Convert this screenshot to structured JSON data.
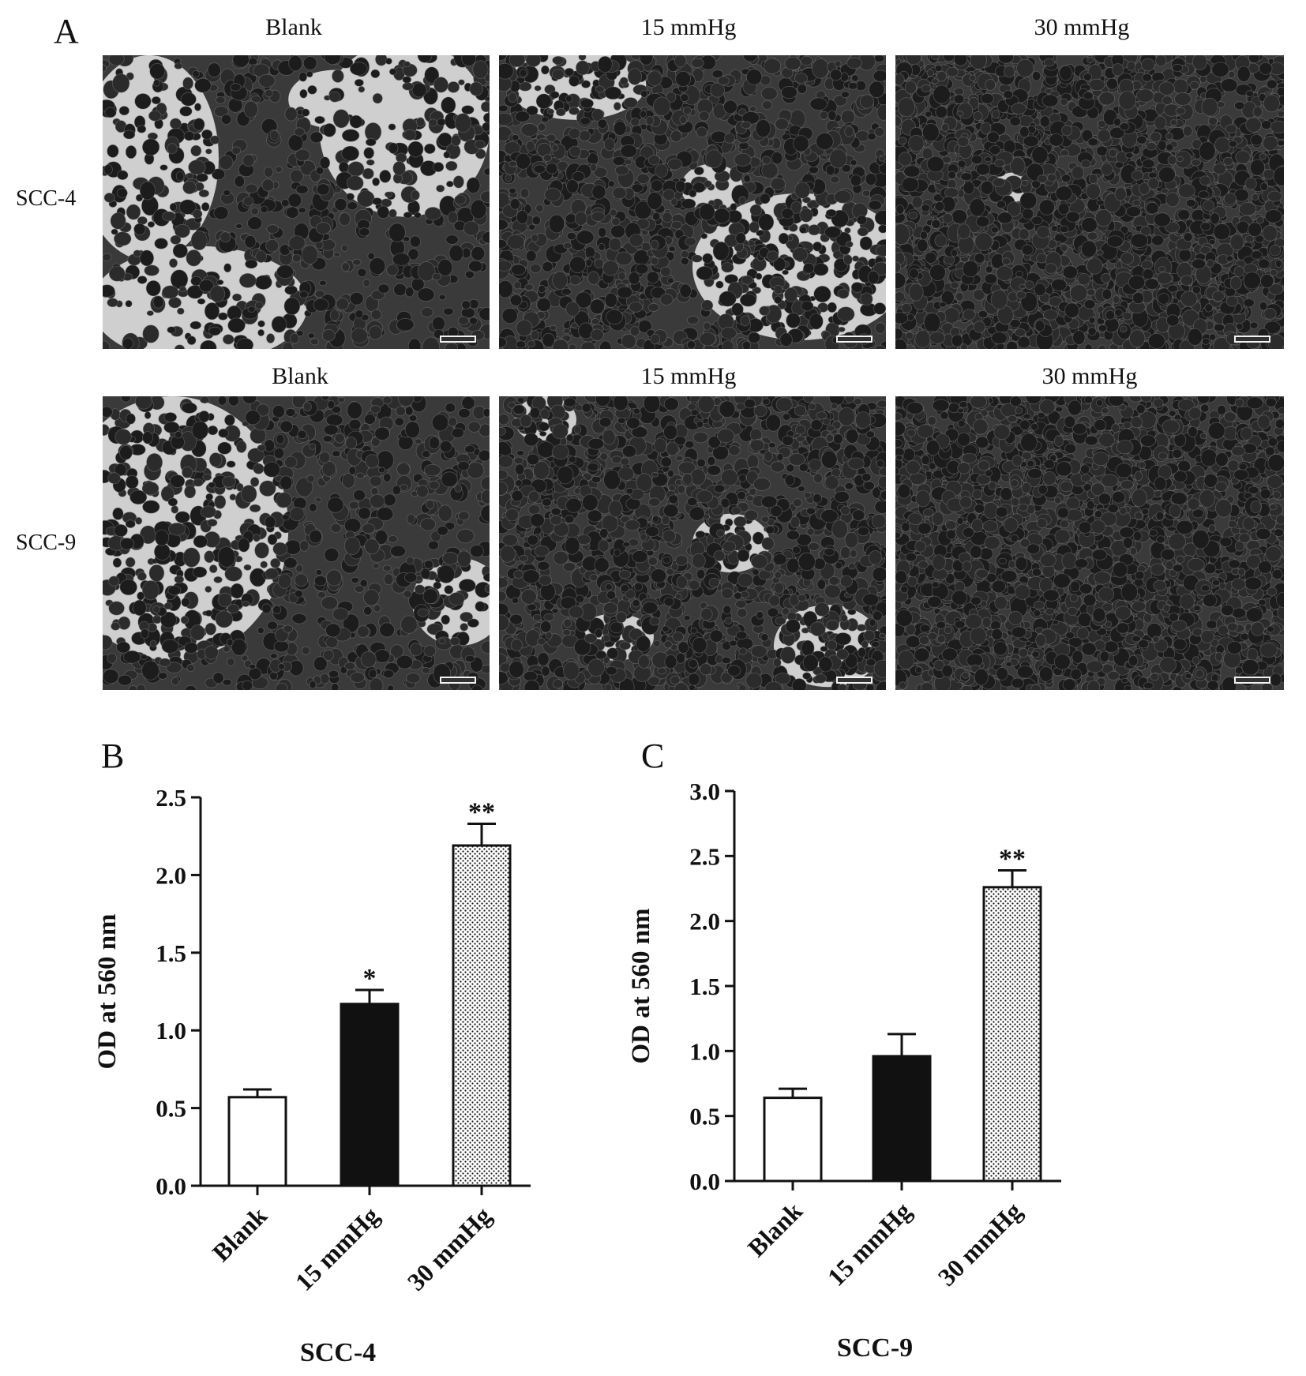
{
  "panel_a": {
    "letter": "A",
    "columns": [
      "Blank",
      "15 mmHg",
      "30 mmHg"
    ],
    "rows": [
      "SCC-4",
      "SCC-9"
    ]
  },
  "chart_data": [
    {
      "panel": "B",
      "type": "bar",
      "categories": [
        "Blank",
        "15 mmHg",
        "30 mmHg"
      ],
      "values": [
        0.57,
        1.17,
        2.19
      ],
      "errors": [
        0.05,
        0.09,
        0.14
      ],
      "significance": [
        "",
        "*",
        "**"
      ],
      "bar_fills": [
        "white",
        "black",
        "dotted"
      ],
      "ylabel": "OD at 560 nm",
      "xlabel": "SCC-4",
      "ylim": [
        0,
        2.5
      ],
      "yticks": [
        "0.0",
        "0.5",
        "1.0",
        "1.5",
        "2.0",
        "2.5"
      ]
    },
    {
      "panel": "C",
      "type": "bar",
      "categories": [
        "Blank",
        "15 mmHg",
        "30 mmHg"
      ],
      "values": [
        0.64,
        0.96,
        2.26
      ],
      "errors": [
        0.07,
        0.17,
        0.13
      ],
      "significance": [
        "",
        "",
        "**"
      ],
      "bar_fills": [
        "white",
        "black",
        "dotted"
      ],
      "ylabel": "OD at 560 nm",
      "xlabel": "SCC-9",
      "ylim": [
        0,
        3.0
      ],
      "yticks": [
        "0.0",
        "0.5",
        "1.0",
        "1.5",
        "2.0",
        "2.5",
        "3.0"
      ]
    }
  ]
}
